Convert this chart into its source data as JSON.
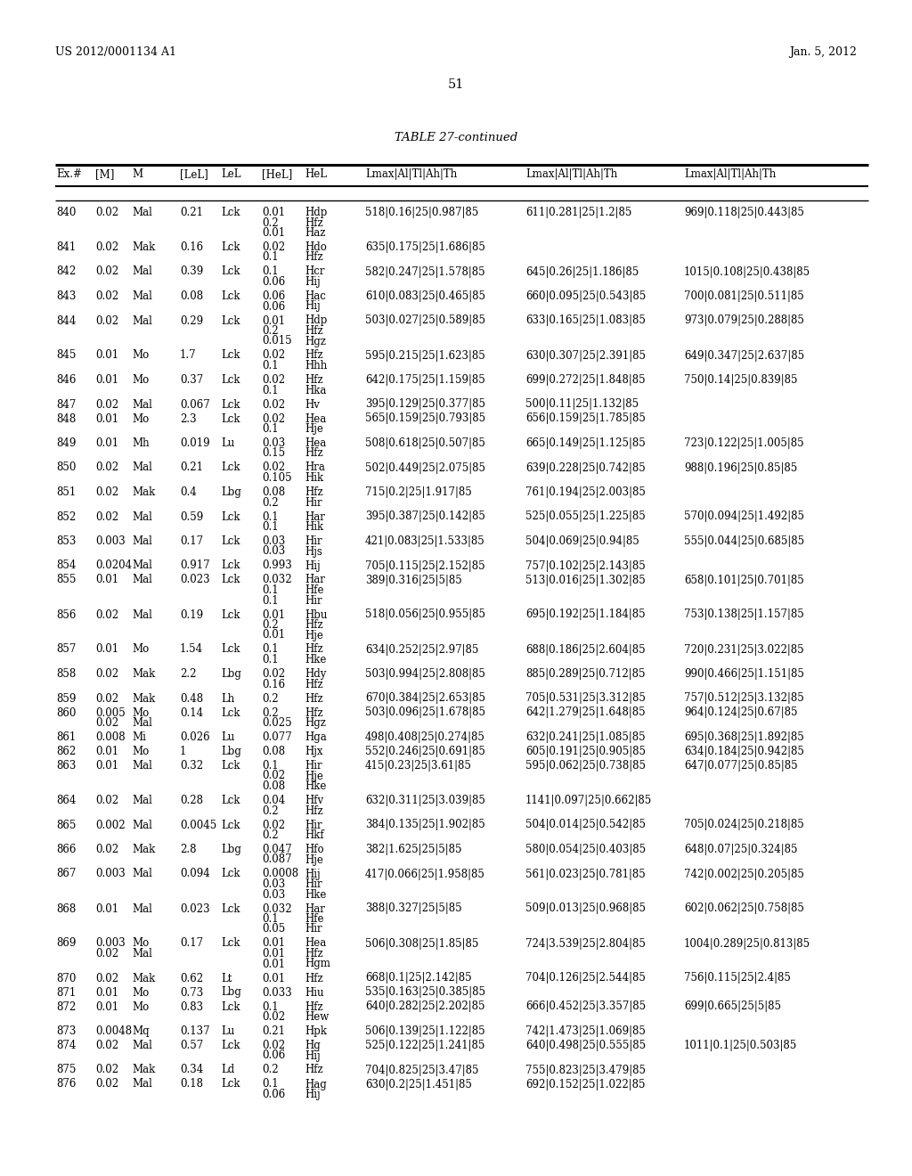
{
  "header_left": "US 2012/0001134 A1",
  "header_right": "Jan. 5, 2012",
  "page_number": "51",
  "table_title": "TABLE 27-continued",
  "rows": [
    [
      "840",
      "0.02",
      "Mal",
      "0.21",
      "Lck",
      "0.01\n0.2\n0.01",
      "Hdp\nHfz\nHaz",
      "518|0.16|25|0.987|85",
      "611|0.281|25|1.2|85",
      "969|0.118|25|0.443|85"
    ],
    [
      "841",
      "0.02",
      "Mak",
      "0.16",
      "Lck",
      "0.02\n0.1",
      "Hdo\nHfz",
      "635|0.175|25|1.686|85",
      "",
      ""
    ],
    [
      "842",
      "0.02",
      "Mal",
      "0.39",
      "Lck",
      "0.1\n0.06",
      "Hcr\nHij",
      "582|0.247|25|1.578|85",
      "645|0.26|25|1.186|85",
      "1015|0.108|25|0.438|85"
    ],
    [
      "843",
      "0.02",
      "Mal",
      "0.08",
      "Lck",
      "0.06\n0.06",
      "Hac\nHij",
      "610|0.083|25|0.465|85",
      "660|0.095|25|0.543|85",
      "700|0.081|25|0.511|85"
    ],
    [
      "844",
      "0.02",
      "Mal",
      "0.29",
      "Lck",
      "0.01\n0.2\n0.015",
      "Hdp\nHfz\nHgz",
      "503|0.027|25|0.589|85",
      "633|0.165|25|1.083|85",
      "973|0.079|25|0.288|85"
    ],
    [
      "845",
      "0.01",
      "Mo",
      "1.7",
      "Lck",
      "0.02\n0.1",
      "Hfz\nHhh",
      "595|0.215|25|1.623|85",
      "630|0.307|25|2.391|85",
      "649|0.347|25|2.637|85"
    ],
    [
      "846",
      "0.01",
      "Mo",
      "0.37",
      "Lck",
      "0.02\n0.1",
      "Hfz\nHka",
      "642|0.175|25|1.159|85",
      "699|0.272|25|1.848|85",
      "750|0.14|25|0.839|85"
    ],
    [
      "847",
      "0.02",
      "Mal",
      "0.067",
      "Lck",
      "0.02",
      "Hv",
      "395|0.129|25|0.377|85",
      "500|0.11|25|1.132|85",
      ""
    ],
    [
      "848",
      "0.01",
      "Mo",
      "2.3",
      "Lck",
      "0.02\n0.1",
      "Hea\nHje",
      "565|0.159|25|0.793|85",
      "656|0.159|25|1.785|85",
      ""
    ],
    [
      "849",
      "0.01",
      "Mh",
      "0.019",
      "Lu",
      "0.03\n0.15",
      "Hea\nHfz",
      "508|0.618|25|0.507|85",
      "665|0.149|25|1.125|85",
      "723|0.122|25|1.005|85"
    ],
    [
      "850",
      "0.02",
      "Mal",
      "0.21",
      "Lck",
      "0.02\n0.105",
      "Hra\nHik",
      "502|0.449|25|2.075|85",
      "639|0.228|25|0.742|85",
      "988|0.196|25|0.85|85"
    ],
    [
      "851",
      "0.02",
      "Mak",
      "0.4",
      "Lbg",
      "0.08\n0.2",
      "Hfz\nHir",
      "715|0.2|25|1.917|85",
      "761|0.194|25|2.003|85",
      ""
    ],
    [
      "852",
      "0.02",
      "Mal",
      "0.59",
      "Lck",
      "0.1\n0.1",
      "Har\nHik",
      "395|0.387|25|0.142|85",
      "525|0.055|25|1.225|85",
      "570|0.094|25|1.492|85"
    ],
    [
      "853",
      "0.003",
      "Mal",
      "0.17",
      "Lck",
      "0.03\n0.03",
      "Hir\nHjs",
      "421|0.083|25|1.533|85",
      "504|0.069|25|0.94|85",
      "555|0.044|25|0.685|85"
    ],
    [
      "854",
      "0.0204",
      "Mal",
      "0.917",
      "Lck",
      "0.993",
      "Hij",
      "705|0.115|25|2.152|85",
      "757|0.102|25|2.143|85",
      ""
    ],
    [
      "855",
      "0.01",
      "Mal",
      "0.023",
      "Lck",
      "0.032\n0.1\n0.1",
      "Har\nHfe\nHir",
      "389|0.316|25|5|85",
      "513|0.016|25|1.302|85",
      "658|0.101|25|0.701|85"
    ],
    [
      "856",
      "0.02",
      "Mal",
      "0.19",
      "Lck",
      "0.01\n0.2\n0.01",
      "Hbu\nHfz\nHje",
      "518|0.056|25|0.955|85",
      "695|0.192|25|1.184|85",
      "753|0.138|25|1.157|85"
    ],
    [
      "857",
      "0.01",
      "Mo",
      "1.54",
      "Lck",
      "0.1\n0.1",
      "Hfz\nHke",
      "634|0.252|25|2.97|85",
      "688|0.186|25|2.604|85",
      "720|0.231|25|3.022|85"
    ],
    [
      "858",
      "0.02",
      "Mak",
      "2.2",
      "Lbg",
      "0.02\n0.16",
      "Hdy\nHfz",
      "503|0.994|25|2.808|85",
      "885|0.289|25|0.712|85",
      "990|0.466|25|1.151|85"
    ],
    [
      "859",
      "0.02",
      "Mak",
      "0.48",
      "Lh",
      "0.2",
      "Hfz",
      "670|0.384|25|2.653|85",
      "705|0.531|25|3.312|85",
      "757|0.512|25|3.132|85"
    ],
    [
      "860",
      "0.005\n0.02",
      "Mo\nMal",
      "0.14",
      "Lck",
      "0.2\n0.025",
      "Hfz\nHgz",
      "503|0.096|25|1.678|85",
      "642|1.279|25|1.648|85",
      "964|0.124|25|0.67|85"
    ],
    [
      "861",
      "0.008",
      "Mi",
      "0.026",
      "Lu",
      "0.077",
      "Hga",
      "498|0.408|25|0.274|85",
      "632|0.241|25|1.085|85",
      "695|0.368|25|1.892|85"
    ],
    [
      "862",
      "0.01",
      "Mo",
      "1",
      "Lbg",
      "0.08",
      "Hjx",
      "552|0.246|25|0.691|85",
      "605|0.191|25|0.905|85",
      "634|0.184|25|0.942|85"
    ],
    [
      "863",
      "0.01",
      "Mal",
      "0.32",
      "Lck",
      "0.1\n0.02\n0.08",
      "Hir\nHje\nHke",
      "415|0.23|25|3.61|85",
      "595|0.062|25|0.738|85",
      "647|0.077|25|0.85|85"
    ],
    [
      "864",
      "0.02",
      "Mal",
      "0.28",
      "Lck",
      "0.04\n0.2",
      "Hfv\nHfz",
      "632|0.311|25|3.039|85",
      "1141|0.097|25|0.662|85",
      ""
    ],
    [
      "865",
      "0.002",
      "Mal",
      "0.0045",
      "Lck",
      "0.02\n0.2",
      "Hir\nHkf",
      "384|0.135|25|1.902|85",
      "504|0.014|25|0.542|85",
      "705|0.024|25|0.218|85"
    ],
    [
      "866",
      "0.02",
      "Mak",
      "2.8",
      "Lbg",
      "0.047\n0.087",
      "Hfo\nHje",
      "382|1.625|25|5|85",
      "580|0.054|25|0.403|85",
      "648|0.07|25|0.324|85"
    ],
    [
      "867",
      "0.003",
      "Mal",
      "0.094",
      "Lck",
      "0.0008\n0.03\n0.03",
      "Hij\nHir\nHke",
      "417|0.066|25|1.958|85",
      "561|0.023|25|0.781|85",
      "742|0.002|25|0.205|85"
    ],
    [
      "868",
      "0.01",
      "Mal",
      "0.023",
      "Lck",
      "0.032\n0.1\n0.05",
      "Har\nHfe\nHir",
      "388|0.327|25|5|85",
      "509|0.013|25|0.968|85",
      "602|0.062|25|0.758|85"
    ],
    [
      "869",
      "0.003\n0.02",
      "Mo\nMal",
      "0.17",
      "Lck",
      "0.01\n0.01\n0.01",
      "Hea\nHfz\nHgm",
      "506|0.308|25|1.85|85",
      "724|3.539|25|2.804|85",
      "1004|0.289|25|0.813|85"
    ],
    [
      "870",
      "0.02",
      "Mak",
      "0.62",
      "Lt",
      "0.01",
      "Hfz",
      "668|0.1|25|2.142|85",
      "704|0.126|25|2.544|85",
      "756|0.115|25|2.4|85"
    ],
    [
      "871",
      "0.01",
      "Mo",
      "0.73",
      "Lbg",
      "0.033",
      "Hiu",
      "535|0.163|25|0.385|85",
      "",
      ""
    ],
    [
      "872",
      "0.01",
      "Mo",
      "0.83",
      "Lck",
      "0.1\n0.02",
      "Hfz\nHew",
      "640|0.282|25|2.202|85",
      "666|0.452|25|3.357|85",
      "699|0.665|25|5|85"
    ],
    [
      "873",
      "0.0048",
      "Mq",
      "0.137",
      "Lu",
      "0.21",
      "Hpk",
      "506|0.139|25|1.122|85",
      "742|1.473|25|1.069|85",
      ""
    ],
    [
      "874",
      "0.02",
      "Mal",
      "0.57",
      "Lck",
      "0.02\n0.06",
      "Hg\nHij",
      "525|0.122|25|1.241|85",
      "640|0.498|25|0.555|85",
      "1011|0.1|25|0.503|85"
    ],
    [
      "875",
      "0.02",
      "Mak",
      "0.34",
      "Ld",
      "0.2",
      "Hfz",
      "704|0.825|25|3.47|85",
      "755|0.823|25|3.479|85",
      ""
    ],
    [
      "876",
      "0.02",
      "Mal",
      "0.18",
      "Lck",
      "0.1\n0.06",
      "Hag\nHij",
      "630|0.2|25|1.451|85",
      "692|0.152|25|1.022|85",
      ""
    ]
  ]
}
